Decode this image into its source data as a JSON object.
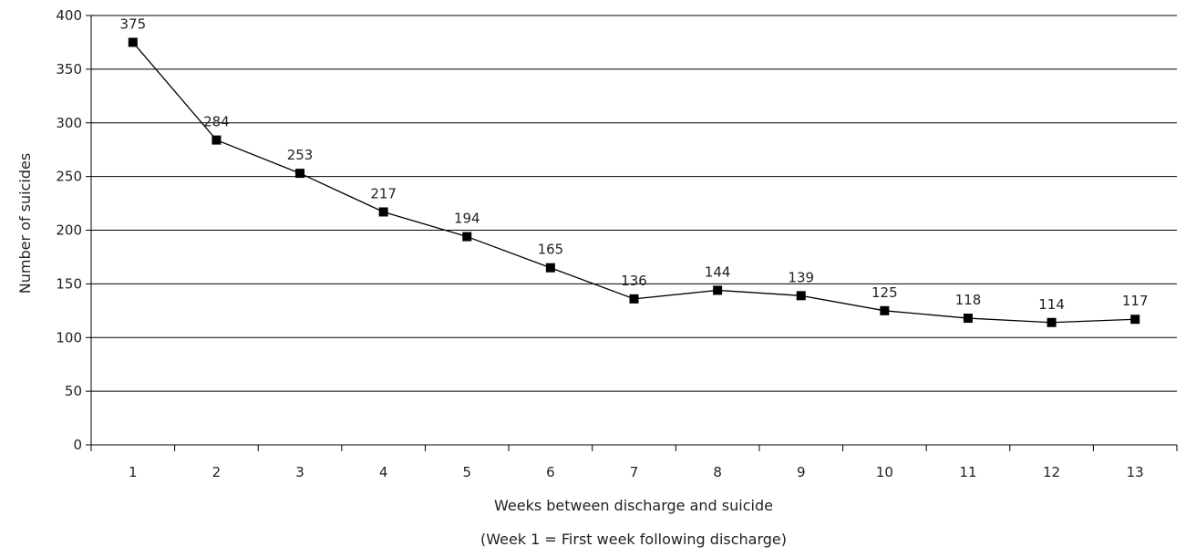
{
  "chart_data": {
    "type": "line",
    "xlabel": "Weeks between discharge and suicide",
    "xlabel_note": "(Week 1 =  First week following discharge)",
    "ylabel": "Number of suicides",
    "categories": [
      "1",
      "2",
      "3",
      "4",
      "5",
      "6",
      "7",
      "8",
      "9",
      "10",
      "11",
      "12",
      "13"
    ],
    "values": [
      375,
      284,
      253,
      217,
      194,
      165,
      136,
      144,
      139,
      125,
      118,
      114,
      117
    ],
    "data_labels": [
      "375",
      "284",
      "253",
      "217",
      "194",
      "165",
      "136",
      "144",
      "139",
      "125",
      "118",
      "114",
      "117"
    ],
    "ylim": [
      0,
      400
    ],
    "yticks": [
      0,
      50,
      100,
      150,
      200,
      250,
      300,
      350,
      400
    ],
    "ytick_labels": [
      "0",
      "50",
      "100",
      "150",
      "200",
      "250",
      "300",
      "350",
      "400"
    ],
    "grid": "horizontal",
    "line_color": "#000000",
    "marker": "square"
  }
}
